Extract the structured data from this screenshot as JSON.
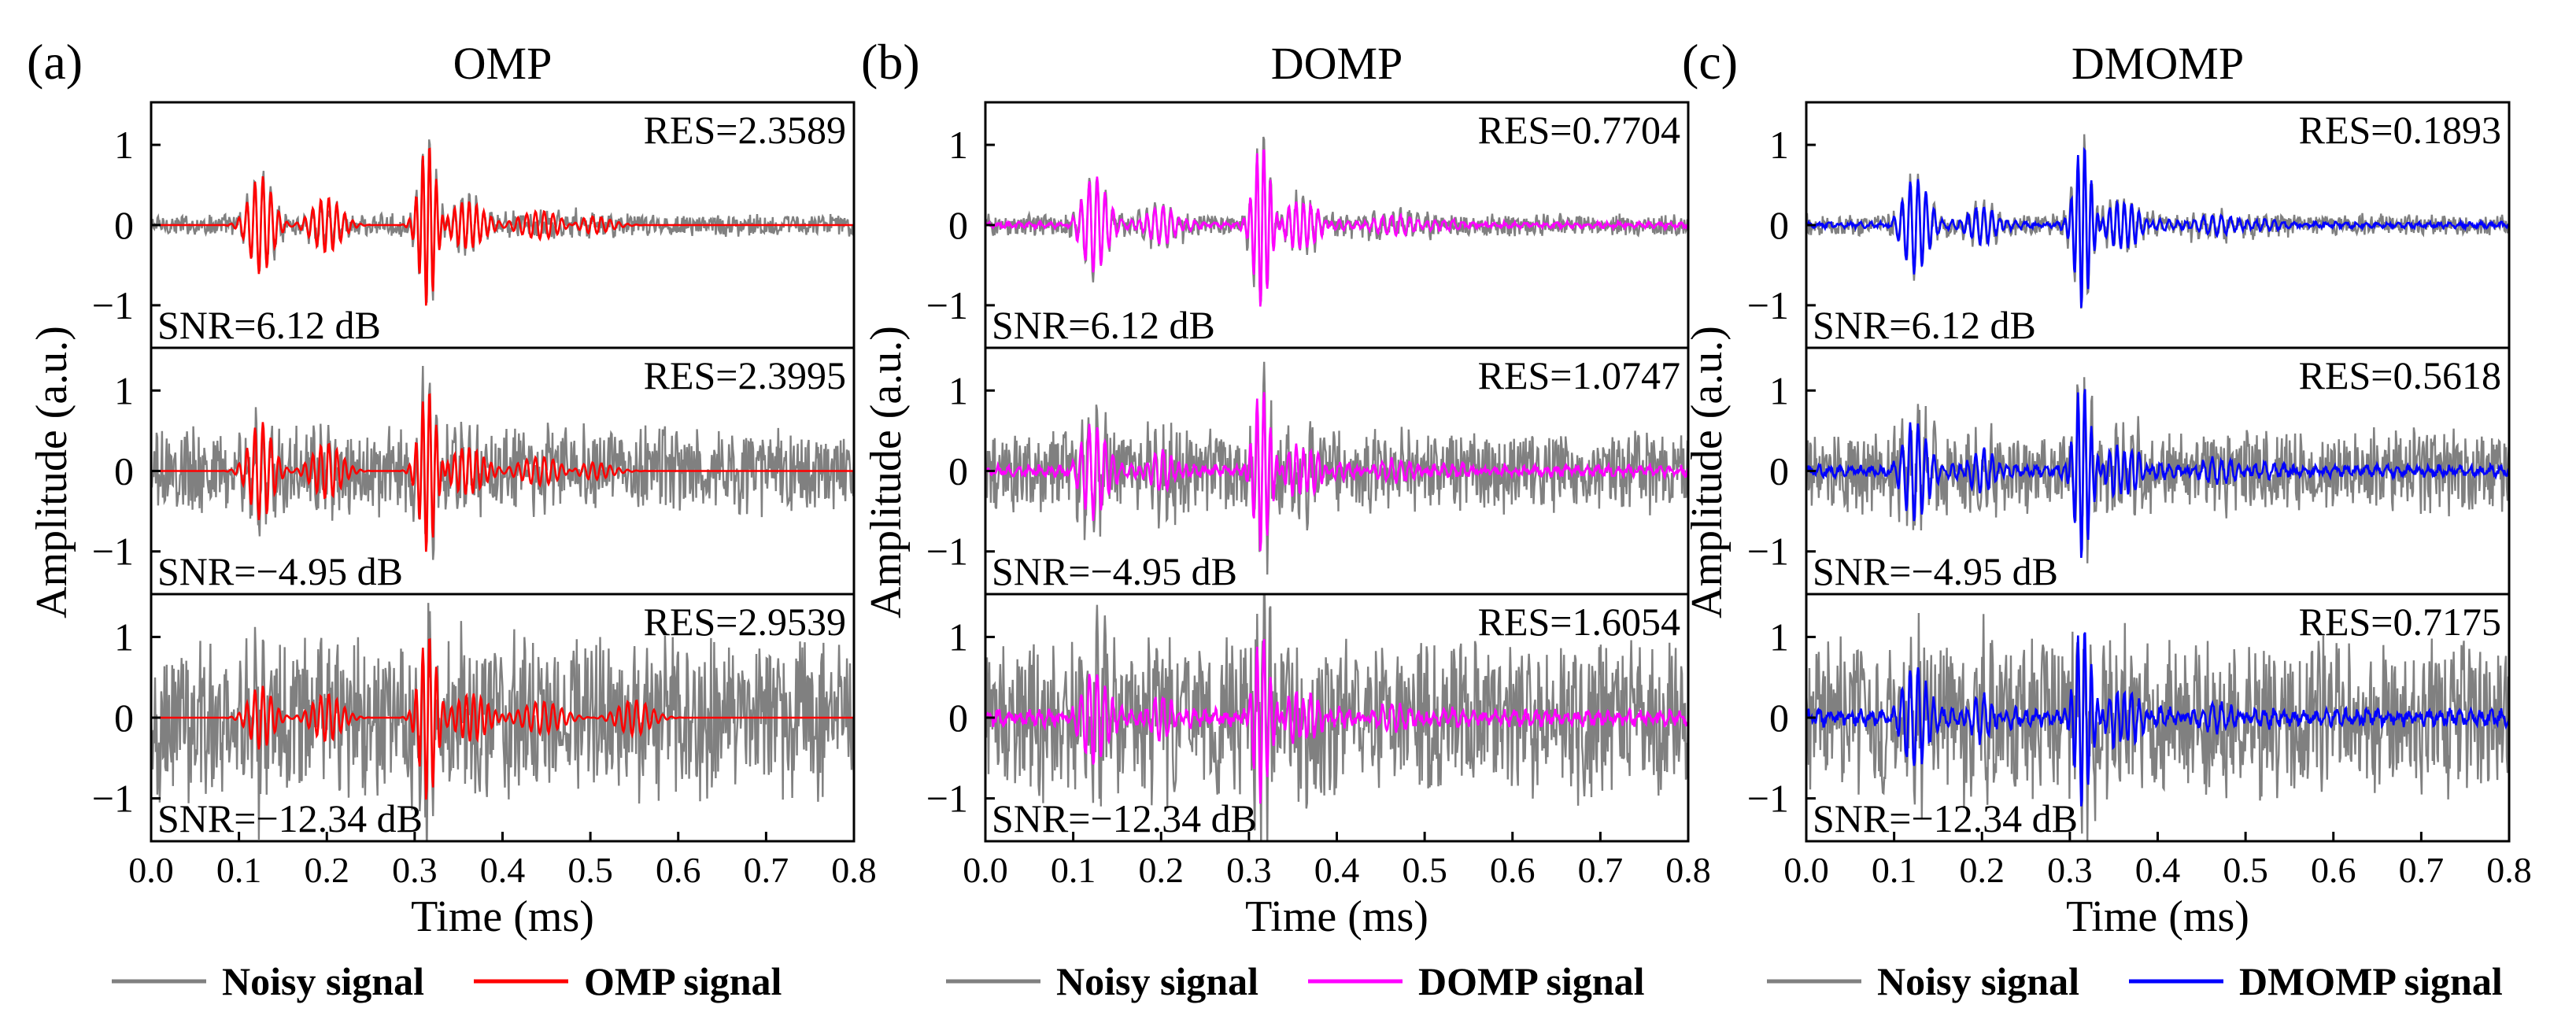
{
  "chart_data": [
    {
      "type": "line",
      "panel_label": "(a)",
      "title": "OMP",
      "xlabel": "Time (ms)",
      "ylabel": "Amplitude (a.u.)",
      "xlim": [
        0.0,
        0.8
      ],
      "ylim": [
        -1.5,
        1.5
      ],
      "x_ticks": [
        "0.0",
        "0.1",
        "0.2",
        "0.3",
        "0.4",
        "0.5",
        "0.6",
        "0.7",
        "0.8"
      ],
      "y_ticks": [
        "1",
        "0",
        "−1"
      ],
      "series": [
        {
          "name": "Noisy signal",
          "color": "#808080"
        },
        {
          "name": "OMP signal",
          "color": "#ff0000"
        }
      ],
      "subplots": [
        {
          "snr": "SNR=6.12 dB",
          "res": "RES=2.3589",
          "noise_level": 0.12,
          "denoise_style": "sparse",
          "rec_gain": 1.0
        },
        {
          "snr": "SNR=−4.95 dB",
          "res": "RES=2.3995",
          "noise_level": 0.45,
          "denoise_style": "sparse",
          "rec_gain": 1.0
        },
        {
          "snr": "SNR=−12.34 dB",
          "res": "RES=2.9539",
          "noise_level": 0.85,
          "denoise_style": "sparse",
          "rec_gain": 1.0
        }
      ]
    },
    {
      "type": "line",
      "panel_label": "(b)",
      "title": "DOMP",
      "xlabel": "Time (ms)",
      "ylabel": "Amplitude (a.u.)",
      "xlim": [
        0.0,
        0.8
      ],
      "ylim": [
        -1.5,
        1.5
      ],
      "x_ticks": [
        "0.0",
        "0.1",
        "0.2",
        "0.3",
        "0.4",
        "0.5",
        "0.6",
        "0.7",
        "0.8"
      ],
      "y_ticks": [
        "1",
        "0",
        "−1"
      ],
      "series": [
        {
          "name": "Noisy signal",
          "color": "#808080"
        },
        {
          "name": "DOMP signal",
          "color": "#ff00ff"
        }
      ],
      "subplots": [
        {
          "snr": "SNR=6.12 dB",
          "res": "RES=0.7704",
          "noise_level": 0.12,
          "denoise_style": "smooth",
          "rec_gain": 1.0
        },
        {
          "snr": "SNR=−4.95 dB",
          "res": "RES=1.0747",
          "noise_level": 0.45,
          "denoise_style": "smooth",
          "rec_gain": 1.0
        },
        {
          "snr": "SNR=−12.34 dB",
          "res": "RES=1.6054",
          "noise_level": 0.85,
          "denoise_style": "smooth",
          "rec_gain": 1.0
        }
      ]
    },
    {
      "type": "line",
      "panel_label": "(c)",
      "title": "DMOMP",
      "xlabel": "Time (ms)",
      "ylabel": "Amplitude (a.u.)",
      "xlim": [
        0.0,
        0.8
      ],
      "ylim": [
        -1.5,
        1.5
      ],
      "x_ticks": [
        "0.0",
        "0.1",
        "0.2",
        "0.3",
        "0.4",
        "0.5",
        "0.6",
        "0.7",
        "0.8"
      ],
      "y_ticks": [
        "1",
        "0",
        "−1"
      ],
      "series": [
        {
          "name": "Noisy signal",
          "color": "#808080"
        },
        {
          "name": "DMOMP signal",
          "color": "#0000ff"
        }
      ],
      "subplots": [
        {
          "snr": "SNR=6.12 dB",
          "res": "RES=0.1893",
          "noise_level": 0.12,
          "denoise_style": "smooth",
          "rec_gain": 1.0
        },
        {
          "snr": "SNR=−4.95 dB",
          "res": "RES=0.5618",
          "noise_level": 0.45,
          "denoise_style": "smooth",
          "rec_gain": 1.05
        },
        {
          "snr": "SNR=−12.34 dB",
          "res": "RES=0.7175",
          "noise_level": 0.85,
          "denoise_style": "smooth",
          "rec_gain": 1.1
        }
      ]
    }
  ]
}
